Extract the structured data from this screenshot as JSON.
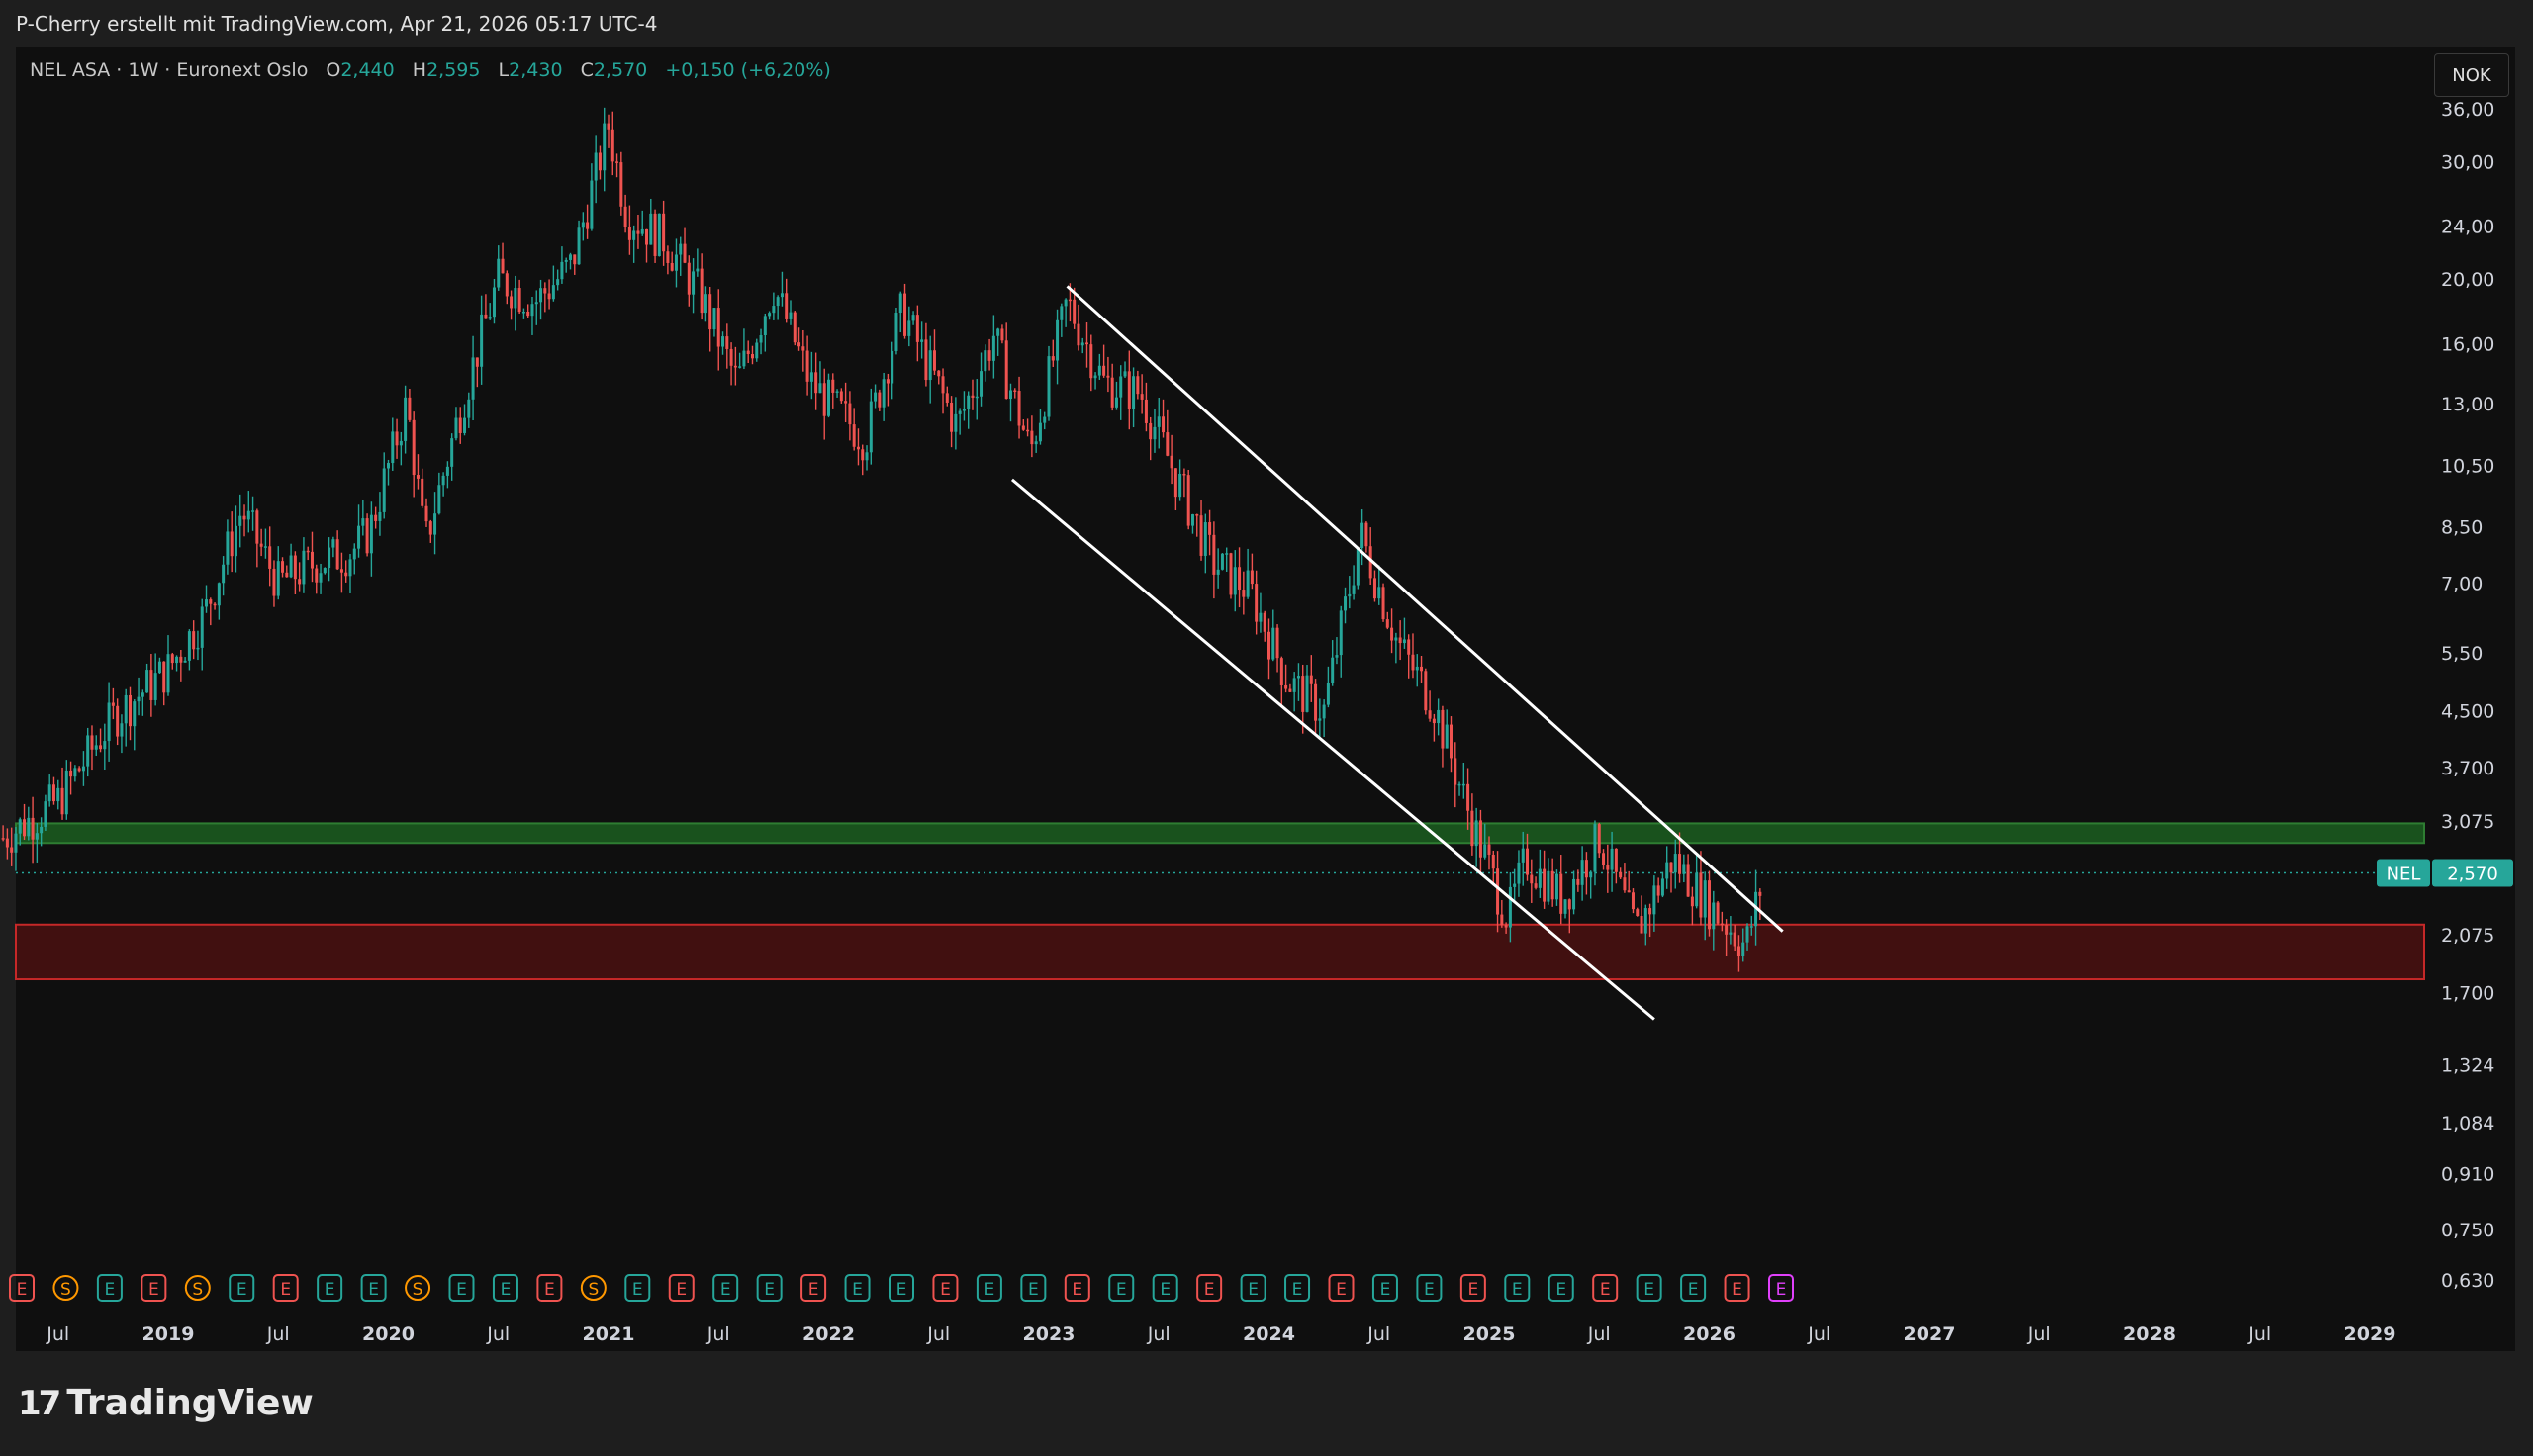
{
  "header": {
    "credit": "P-Cherry erstellt mit TradingView.com, Apr 21, 2026 05:17 UTC-4"
  },
  "legend": {
    "symbol": "NEL ASA · 1W · Euronext Oslo",
    "open_label": "O",
    "open": "2,440",
    "high_label": "H",
    "high": "2,595",
    "low_label": "L",
    "low": "2,430",
    "close_label": "C",
    "close": "2,570",
    "change": "+0,150 (+6,20%)"
  },
  "currency_button": "NOK",
  "price_tag": {
    "ticker": "NEL",
    "value": "2,570"
  },
  "footer": {
    "brand": "TradingView",
    "mark": "17"
  },
  "colors": {
    "up": "#26a69a",
    "down": "#ef5350",
    "support_zone": "#1b5e20",
    "demand_zone": "#4a1010",
    "channel": "#ffffff",
    "earnings_up": "#26a69a",
    "earnings_down": "#ef5350",
    "split_marker": "#ff9800",
    "earnings_latest": "#e040fb"
  },
  "chart_data": {
    "type": "candlestick",
    "symbol": "NEL ASA",
    "interval": "1W",
    "exchange": "Euronext Oslo",
    "currency": "NOK",
    "y_scale": "log",
    "ylim": [
      0.6,
      38
    ],
    "y_ticks": [
      "36,00",
      "30,00",
      "24,00",
      "20,00",
      "16,00",
      "13,00",
      "10,50",
      "8,50",
      "7,00",
      "5,50",
      "4,500",
      "3,700",
      "3,075",
      "2,075",
      "1,700",
      "1,324",
      "1,084",
      "0,910",
      "0,750",
      "0,630"
    ],
    "x_ticks": [
      "Jul",
      "2019",
      "Jul",
      "2020",
      "Jul",
      "2021",
      "Jul",
      "2022",
      "Jul",
      "2023",
      "Jul",
      "2024",
      "Jul",
      "2025",
      "Jul",
      "2026",
      "Jul",
      "2027",
      "Jul",
      "2028",
      "Jul",
      "2029"
    ],
    "price_path": [
      [
        "2018-04",
        2.9
      ],
      [
        "2018-07",
        3.3
      ],
      [
        "2018-10",
        4.4
      ],
      [
        "2019-01",
        5.2
      ],
      [
        "2019-03",
        6.3
      ],
      [
        "2019-05",
        9.0
      ],
      [
        "2019-07",
        7.0
      ],
      [
        "2019-09",
        7.5
      ],
      [
        "2019-11",
        7.8
      ],
      [
        "2019-12",
        8.4
      ],
      [
        "2020-02",
        13.0
      ],
      [
        "2020-03",
        8.0
      ],
      [
        "2020-05",
        13.0
      ],
      [
        "2020-07",
        20.0
      ],
      [
        "2020-09",
        18.5
      ],
      [
        "2020-11",
        21.0
      ],
      [
        "2021-01",
        34.0
      ],
      [
        "2021-02",
        25.0
      ],
      [
        "2021-04",
        23.0
      ],
      [
        "2021-06",
        19.0
      ],
      [
        "2021-08",
        14.0
      ],
      [
        "2021-10",
        19.5
      ],
      [
        "2021-12",
        14.0
      ],
      [
        "2022-03",
        11.5
      ],
      [
        "2022-05",
        18.0
      ],
      [
        "2022-08",
        12.0
      ],
      [
        "2022-10",
        16.5
      ],
      [
        "2022-12",
        11.0
      ],
      [
        "2023-02",
        18.5
      ],
      [
        "2023-04",
        14.0
      ],
      [
        "2023-06",
        13.5
      ],
      [
        "2023-08",
        10.0
      ],
      [
        "2023-10",
        7.5
      ],
      [
        "2023-12",
        6.8
      ],
      [
        "2024-02",
        5.0
      ],
      [
        "2024-04",
        4.5
      ],
      [
        "2024-06",
        8.3
      ],
      [
        "2024-08",
        5.7
      ],
      [
        "2024-10",
        4.6
      ],
      [
        "2024-12",
        3.1
      ],
      [
        "2025-02",
        2.2
      ],
      [
        "2025-03",
        2.7
      ],
      [
        "2025-05",
        2.35
      ],
      [
        "2025-07",
        2.9
      ],
      [
        "2025-09",
        2.1
      ],
      [
        "2025-11",
        2.7
      ],
      [
        "2026-01",
        2.3
      ],
      [
        "2026-03",
        2.0
      ],
      [
        "2026-04",
        2.57
      ]
    ],
    "zones": [
      {
        "type": "support",
        "from": 2.85,
        "to": 3.05
      },
      {
        "type": "demand",
        "from": 1.78,
        "to": 2.15
      }
    ],
    "channel_lines": [
      {
        "from": [
          "2023-02",
          19.5
        ],
        "to": [
          "2026-05",
          2.1
        ]
      },
      {
        "from": [
          "2022-11",
          10.0
        ],
        "to": [
          "2025-10",
          1.55
        ]
      }
    ],
    "last_price": 2.57,
    "event_markers": [
      "E",
      "S",
      "E",
      "E",
      "S",
      "E",
      "E",
      "E",
      "E",
      "S",
      "E",
      "E",
      "E",
      "S",
      "E",
      "E",
      "E",
      "E",
      "E",
      "E",
      "E",
      "E",
      "E",
      "E",
      "E",
      "E",
      "E",
      "E",
      "E",
      "E",
      "E",
      "E",
      "E",
      "E",
      "E",
      "E",
      "E",
      "E",
      "E",
      "E",
      "E"
    ]
  }
}
